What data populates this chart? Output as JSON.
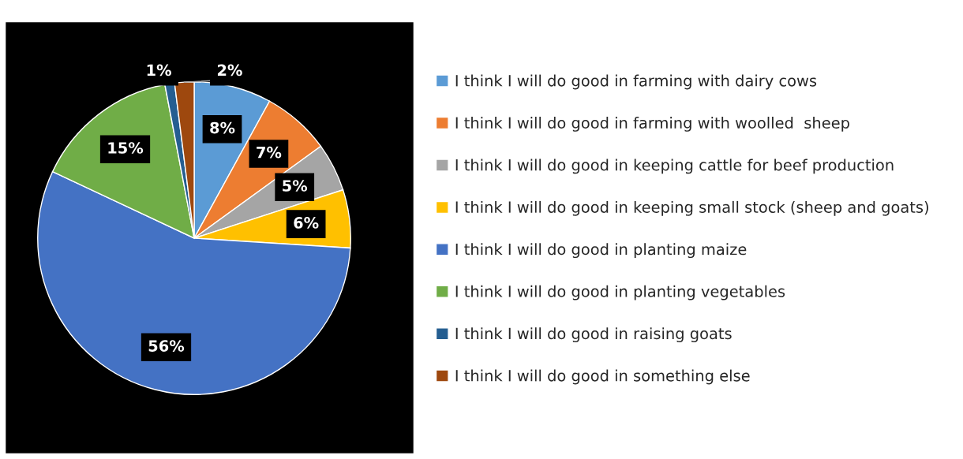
{
  "chart_data": {
    "type": "pie",
    "categories": [
      "I think I will do good in farming with dairy cows",
      "I think I will do good in farming with woolled  sheep",
      "I think I will do good in keeping cattle for beef production",
      "I think I will do good in keeping small stock (sheep and goats)",
      "I think I will do good in planting maize",
      "I think I will do good in planting vegetables",
      "I think I will do good in raising goats",
      "I think I will do good in something else"
    ],
    "values": [
      8,
      7,
      5,
      6,
      56,
      15,
      1,
      2
    ],
    "colors": [
      "#5b9bd5",
      "#ed7d31",
      "#a5a5a5",
      "#ffc000",
      "#4472c4",
      "#70ad47",
      "#255e91",
      "#9e480e"
    ],
    "value_labels": [
      "8%",
      "7%",
      "5%",
      "6%",
      "56%",
      "15%",
      "1%",
      "2%"
    ],
    "legend": "right"
  }
}
